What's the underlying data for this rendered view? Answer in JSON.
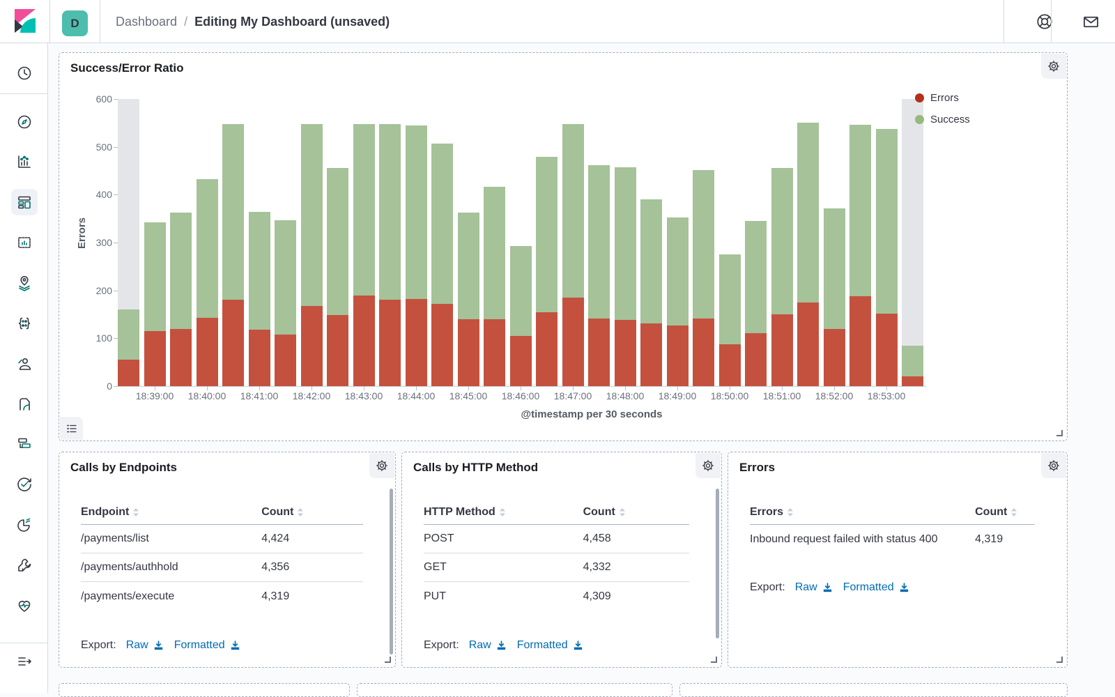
{
  "header": {
    "avatar_letter": "D",
    "breadcrumb_section": "Dashboard",
    "breadcrumb_separator": "/",
    "breadcrumb_current": "Editing My Dashboard (unsaved)",
    "right_icons": [
      "help-life-ring-icon",
      "mail-icon"
    ]
  },
  "sidebar": {
    "icons": [
      "recent-clock-icon",
      "discover-compass-icon",
      "visualize-chart-icon",
      "dashboard-app-icon",
      "canvas-app-icon",
      "maps-app-icon",
      "machine-learning-icon",
      "graph-user-icon",
      "logs-app-icon",
      "apm-app-icon",
      "uptime-app-icon",
      "siem-app-icon",
      "dev-tools-wrench-icon",
      "monitoring-heartbeat-icon"
    ],
    "selected": "dashboard-app-icon",
    "collapse_icon": "menu-collapse-icon"
  },
  "chart_panel": {
    "title": "Success/Error Ratio",
    "legend": [
      {
        "label": "Errors",
        "color": "#b3301b"
      },
      {
        "label": "Success",
        "color": "#94ba7d"
      }
    ],
    "gear_icon": "gear-icon",
    "legend_toggle_icon": "list-icon"
  },
  "chart_data": {
    "type": "bar",
    "stacked": true,
    "title": "Success/Error Ratio",
    "xlabel": "@timestamp per 30 seconds",
    "ylabel": "Errors",
    "ylim": [
      0,
      600
    ],
    "ytick_step": 100,
    "grid": false,
    "legend_position": "top-right",
    "categories": [
      "18:38:30",
      "18:39:00",
      "18:39:30",
      "18:40:00",
      "18:40:30",
      "18:41:00",
      "18:41:30",
      "18:42:00",
      "18:42:30",
      "18:43:00",
      "18:43:30",
      "18:44:00",
      "18:44:30",
      "18:45:00",
      "18:45:30",
      "18:46:00",
      "18:46:30",
      "18:47:00",
      "18:47:30",
      "18:48:00",
      "18:48:30",
      "18:49:00",
      "18:49:30",
      "18:50:00",
      "18:50:30",
      "18:51:00",
      "18:51:30",
      "18:52:00",
      "18:52:30",
      "18:53:00",
      "18:53:30"
    ],
    "series": [
      {
        "name": "Errors",
        "color": "#c4513e",
        "values": [
          55,
          115,
          120,
          143,
          180,
          118,
          108,
          167,
          148,
          190,
          180,
          182,
          172,
          140,
          140,
          105,
          155,
          185,
          141,
          138,
          131,
          126,
          142,
          88,
          110,
          150,
          175,
          120,
          188,
          152,
          20
        ]
      },
      {
        "name": "Success",
        "color": "#a5c299",
        "values": [
          105,
          227,
          243,
          289,
          368,
          246,
          238,
          380,
          308,
          357,
          367,
          362,
          335,
          222,
          276,
          188,
          324,
          362,
          320,
          320,
          259,
          226,
          310,
          188,
          235,
          306,
          376,
          251,
          358,
          386,
          65
        ]
      }
    ],
    "partial_buckets": [
      0,
      30
    ],
    "x_labels_every": 2,
    "x_labels_start": 1
  },
  "tables": [
    {
      "title": "Calls by Endpoints",
      "col1": "Endpoint",
      "col2": "Count",
      "rows": [
        {
          "name": "/payments/list",
          "count": "4,424"
        },
        {
          "name": "/payments/authhold",
          "count": "4,356"
        },
        {
          "name": "/payments/execute",
          "count": "4,319"
        }
      ],
      "export_label": "Export:",
      "raw_label": "Raw",
      "formatted_label": "Formatted"
    },
    {
      "title": "Calls by HTTP Method",
      "col1": "HTTP Method",
      "col2": "Count",
      "rows": [
        {
          "name": "POST",
          "count": "4,458"
        },
        {
          "name": "GET",
          "count": "4,332"
        },
        {
          "name": "PUT",
          "count": "4,309"
        }
      ],
      "export_label": "Export:",
      "raw_label": "Raw",
      "formatted_label": "Formatted"
    },
    {
      "title": "Errors",
      "col1": "Errors",
      "col2": "Count",
      "rows": [
        {
          "name": "Inbound request failed with status 400",
          "count": "4,319"
        }
      ],
      "export_label": "Export:",
      "raw_label": "Raw",
      "formatted_label": "Formatted"
    }
  ]
}
